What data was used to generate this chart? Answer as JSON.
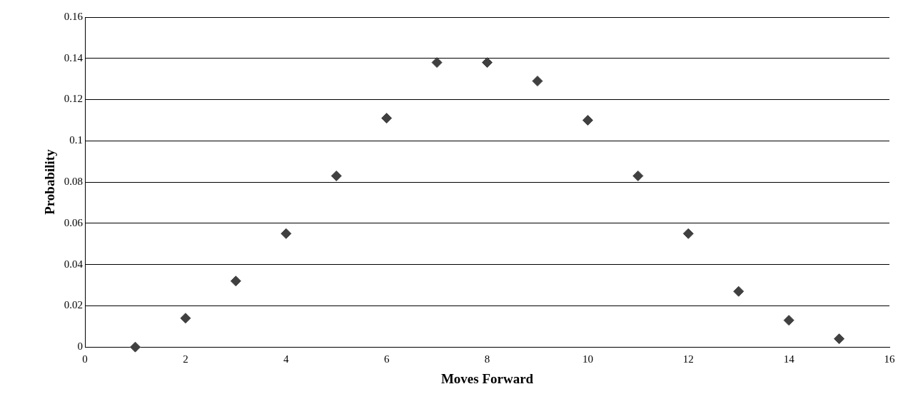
{
  "chart_data": {
    "type": "scatter",
    "xlabel": "Moves Forward",
    "ylabel": "Probability",
    "x": [
      1,
      2,
      3,
      4,
      5,
      6,
      7,
      8,
      9,
      10,
      11,
      12,
      13,
      14,
      15
    ],
    "series": [
      {
        "color": "#404040",
        "values": [
          0,
          0.014,
          0.032,
          0.055,
          0.083,
          0.111,
          0.138,
          0.138,
          0.129,
          0.11,
          0.083,
          0.055,
          0.027,
          0.013,
          0.004
        ]
      }
    ],
    "xlim": [
      0,
      16
    ],
    "xticks": [
      0,
      2,
      4,
      6,
      8,
      10,
      12,
      14,
      16
    ],
    "ylim": [
      0,
      0.16
    ],
    "yticks": [
      0,
      0.02,
      0.04,
      0.06,
      0.08,
      0.1,
      0.12,
      0.14,
      0.16
    ],
    "grid": "y",
    "marker": "diamond",
    "legend": false
  }
}
